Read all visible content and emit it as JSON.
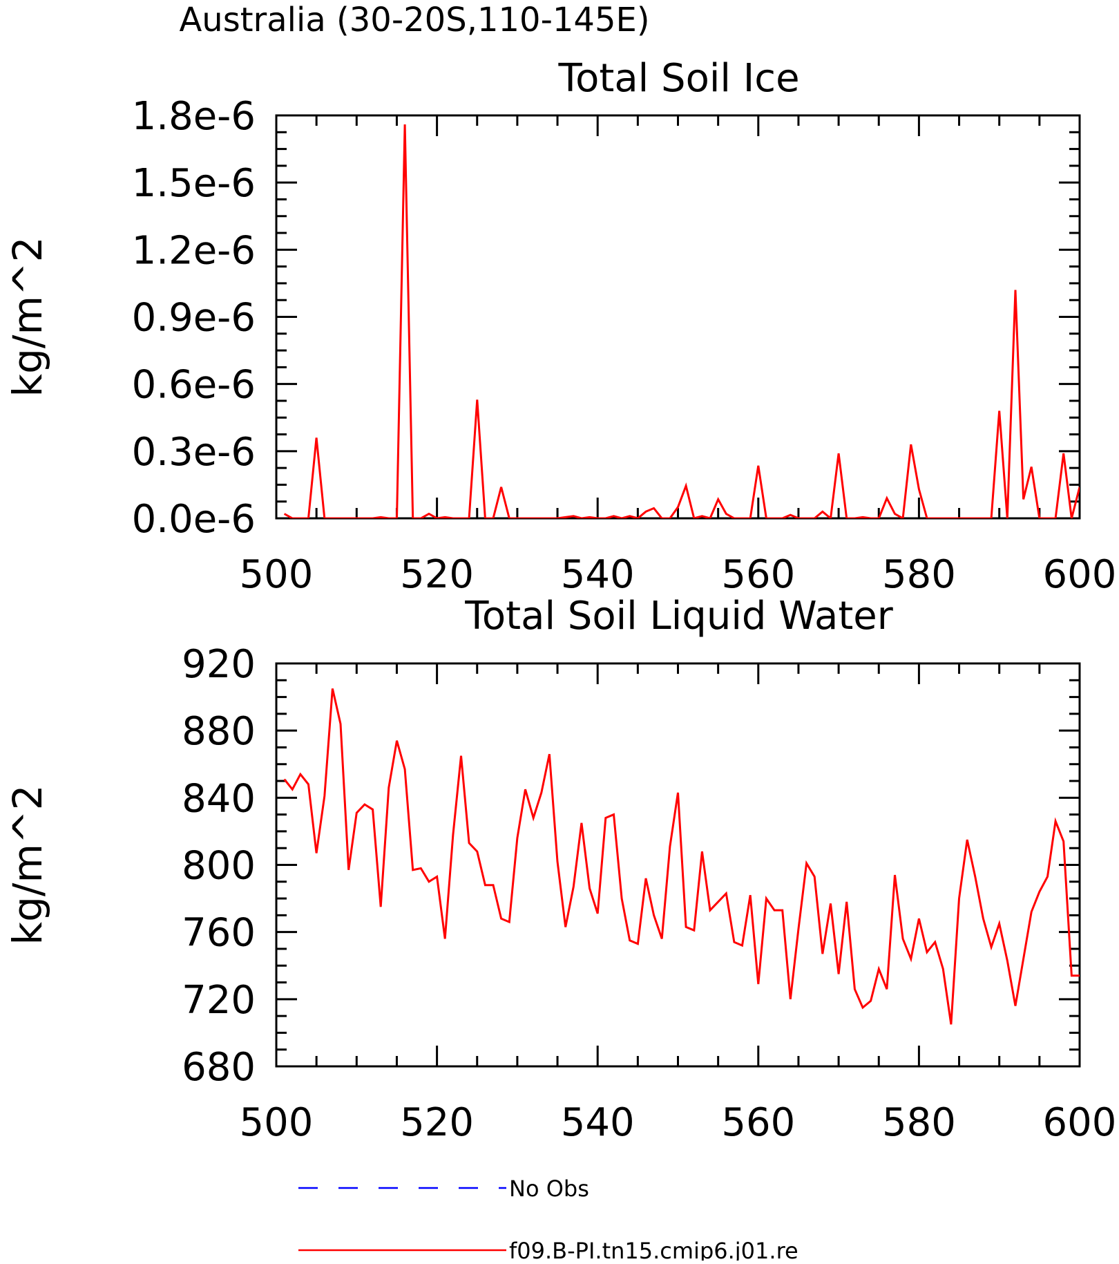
{
  "page": {
    "super_title": "Australia (30-20S,110-145E)"
  },
  "legend": {
    "items": [
      {
        "label": "No Obs",
        "color": "#0000ff",
        "dash": true
      },
      {
        "label": "f09.B-PI.tn15.cmip6.j01.re",
        "color": "#ff0000",
        "dash": false
      }
    ]
  },
  "chart_data": [
    {
      "type": "line",
      "title": "Total Soil Ice",
      "xlabel": "",
      "ylabel": "kg/m^2",
      "xlim": [
        500,
        600
      ],
      "ylim": [
        0,
        1.8e-06
      ],
      "x_ticks": [
        500,
        520,
        540,
        560,
        580,
        600
      ],
      "y_ticks": [
        0,
        3e-07,
        6e-07,
        9e-07,
        1.2e-06,
        1.5e-06,
        1.8e-06
      ],
      "y_tick_labels": [
        "0.0e-6",
        "0.3e-6",
        "0.6e-6",
        "0.9e-6",
        "1.2e-6",
        "1.5e-6",
        "1.8e-6"
      ],
      "grid": false,
      "series": [
        {
          "color": "#ff0000",
          "x": [
            501,
            502,
            503,
            504,
            505,
            506,
            507,
            508,
            509,
            510,
            511,
            512,
            513,
            514,
            515,
            516,
            517,
            518,
            519,
            520,
            521,
            522,
            523,
            524,
            525,
            526,
            527,
            528,
            529,
            530,
            531,
            532,
            533,
            534,
            535,
            536,
            537,
            538,
            539,
            540,
            541,
            542,
            543,
            544,
            545,
            546,
            547,
            548,
            549,
            550,
            551,
            552,
            553,
            554,
            555,
            556,
            557,
            558,
            559,
            560,
            561,
            562,
            563,
            564,
            565,
            566,
            567,
            568,
            569,
            570,
            571,
            572,
            573,
            574,
            575,
            576,
            577,
            578,
            579,
            580,
            581,
            582,
            583,
            584,
            585,
            586,
            587,
            588,
            589,
            590,
            591,
            592,
            593,
            594,
            595,
            596,
            597,
            598,
            599,
            600
          ],
          "values": [
            2e-08,
            0,
            0,
            0,
            3.6e-07,
            0,
            0,
            0,
            0,
            0,
            0,
            0,
            5e-09,
            0,
            0,
            1.76e-06,
            0,
            0,
            2e-08,
            0,
            5e-09,
            0,
            0,
            0,
            5.3e-07,
            0,
            0,
            1.4e-07,
            0,
            0,
            0,
            0,
            0,
            0,
            0,
            5e-09,
            1e-08,
            0,
            5e-09,
            0,
            0,
            1e-08,
            0,
            1e-08,
            0,
            3e-08,
            4.5e-08,
            0,
            0,
            5e-08,
            1.45e-07,
            0,
            1e-08,
            0,
            8.5e-08,
            2e-08,
            0,
            0,
            0,
            2.35e-07,
            0,
            0,
            0,
            1.5e-08,
            0,
            0,
            0,
            3e-08,
            0,
            2.9e-07,
            0,
            0,
            5e-09,
            0,
            0,
            9e-08,
            2e-08,
            0,
            3.3e-07,
            1.3e-07,
            0,
            0,
            0,
            0,
            0,
            0,
            0,
            0,
            0,
            4.8e-07,
            0,
            1.02e-06,
            8.5e-08,
            2.3e-07,
            0,
            0,
            0,
            2.9e-07,
            0,
            1.4e-07
          ]
        }
      ]
    },
    {
      "type": "line",
      "title": "Total Soil Liquid Water",
      "xlabel": "",
      "ylabel": "kg/m^2",
      "xlim": [
        500,
        600
      ],
      "ylim": [
        680,
        920
      ],
      "x_ticks": [
        500,
        520,
        540,
        560,
        580,
        600
      ],
      "y_ticks": [
        680,
        720,
        760,
        800,
        840,
        880,
        920
      ],
      "y_tick_labels": [
        "680",
        "720",
        "760",
        "800",
        "840",
        "880",
        "920"
      ],
      "grid": false,
      "series": [
        {
          "color": "#ff0000",
          "x": [
            501,
            502,
            503,
            504,
            505,
            506,
            507,
            508,
            509,
            510,
            511,
            512,
            513,
            514,
            515,
            516,
            517,
            518,
            519,
            520,
            521,
            522,
            523,
            524,
            525,
            526,
            527,
            528,
            529,
            530,
            531,
            532,
            533,
            534,
            535,
            536,
            537,
            538,
            539,
            540,
            541,
            542,
            543,
            544,
            545,
            546,
            547,
            548,
            549,
            550,
            551,
            552,
            553,
            554,
            555,
            556,
            557,
            558,
            559,
            560,
            561,
            562,
            563,
            564,
            565,
            566,
            567,
            568,
            569,
            570,
            571,
            572,
            573,
            574,
            575,
            576,
            577,
            578,
            579,
            580,
            581,
            582,
            583,
            584,
            585,
            586,
            587,
            588,
            589,
            590,
            591,
            592,
            593,
            594,
            595,
            596,
            597,
            598,
            599,
            600
          ],
          "values": [
            851,
            845,
            854,
            848,
            807,
            841,
            905,
            884,
            797,
            831,
            836,
            833,
            775,
            846,
            874,
            857,
            797,
            798,
            790,
            793,
            756,
            818,
            865,
            813,
            808,
            788,
            788,
            768,
            766,
            816,
            845,
            828,
            843,
            866,
            802,
            763,
            787,
            825,
            786,
            771,
            828,
            830,
            780,
            755,
            753,
            792,
            770,
            756,
            811,
            843,
            763,
            761,
            808,
            773,
            778,
            783,
            754,
            752,
            782,
            729,
            780,
            773,
            773,
            720,
            762,
            801,
            793,
            747,
            777,
            735,
            778,
            726,
            715,
            719,
            738,
            726,
            794,
            756,
            744,
            768,
            748,
            754,
            738,
            705,
            780,
            815,
            793,
            768,
            751,
            765,
            743,
            716,
            744,
            772,
            784,
            793,
            826,
            814,
            734,
            734
          ]
        }
      ]
    }
  ]
}
